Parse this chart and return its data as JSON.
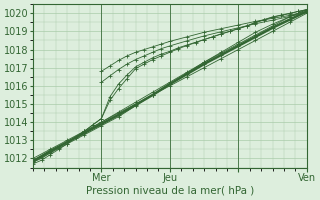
{
  "title": "",
  "xlabel": "Pression niveau de la mer( hPa )",
  "ylabel": "",
  "bg_color": "#cce0cc",
  "plot_bg_color": "#ddeedd",
  "grid_color": "#aaccaa",
  "line_color_hex": "#336633",
  "xlim": [
    0,
    96
  ],
  "ylim": [
    1011.5,
    1020.5
  ],
  "yticks": [
    1012,
    1013,
    1014,
    1015,
    1016,
    1017,
    1018,
    1019,
    1020
  ],
  "xtick_positions": [
    24,
    48,
    72,
    96
  ],
  "xtick_labels": [
    "Mer",
    "Jeu",
    "",
    "Ven"
  ],
  "day_lines": [
    24,
    48,
    72,
    96
  ],
  "series": [
    {
      "x": [
        0,
        6,
        12,
        18,
        24,
        30,
        36,
        42,
        48,
        54,
        60,
        66,
        72,
        78,
        84,
        90,
        96
      ],
      "y": [
        1011.8,
        1012.3,
        1012.8,
        1013.3,
        1013.8,
        1014.3,
        1014.9,
        1015.5,
        1016.1,
        1016.7,
        1017.3,
        1017.8,
        1018.3,
        1018.8,
        1019.3,
        1019.8,
        1020.2
      ]
    },
    {
      "x": [
        0,
        6,
        12,
        18,
        24,
        30,
        36,
        42,
        48,
        54,
        60,
        66,
        72,
        78,
        84,
        90,
        96
      ],
      "y": [
        1011.9,
        1012.35,
        1012.9,
        1013.45,
        1014.0,
        1014.55,
        1015.1,
        1015.65,
        1016.2,
        1016.75,
        1017.3,
        1017.85,
        1018.4,
        1018.95,
        1019.4,
        1019.8,
        1020.2
      ]
    },
    {
      "x": [
        0,
        6,
        12,
        18,
        24,
        30,
        36,
        42,
        48,
        54,
        60,
        66,
        72,
        78,
        84,
        90,
        96
      ],
      "y": [
        1012.0,
        1012.5,
        1013.0,
        1013.5,
        1014.0,
        1014.5,
        1015.0,
        1015.5,
        1016.0,
        1016.5,
        1017.0,
        1017.5,
        1018.0,
        1018.5,
        1019.0,
        1019.5,
        1020.0
      ]
    },
    {
      "x": [
        0,
        3,
        6,
        9,
        12,
        15,
        18,
        21,
        24,
        27,
        30,
        33,
        36,
        39,
        42,
        45,
        48,
        51,
        54,
        57,
        60,
        63,
        66,
        69,
        72,
        75,
        78,
        81,
        84,
        87,
        90,
        93,
        96
      ],
      "y": [
        1011.7,
        1011.9,
        1012.2,
        1012.5,
        1012.8,
        1013.15,
        1013.5,
        1013.85,
        1014.2,
        1015.4,
        1016.1,
        1016.6,
        1017.05,
        1017.3,
        1017.55,
        1017.75,
        1017.9,
        1018.1,
        1018.25,
        1018.4,
        1018.55,
        1018.7,
        1018.85,
        1019.0,
        1019.15,
        1019.3,
        1019.5,
        1019.65,
        1019.8,
        1019.9,
        1020.0,
        1020.1,
        1020.2
      ]
    },
    {
      "x": [
        0,
        3,
        6,
        9,
        12,
        15,
        18,
        21,
        24,
        27,
        30,
        33,
        36,
        39,
        42,
        45,
        48,
        51,
        54,
        57,
        60,
        63,
        66,
        69,
        72,
        75,
        78,
        81,
        84,
        87,
        90,
        93,
        96
      ],
      "y": [
        1011.8,
        1012.0,
        1012.3,
        1012.6,
        1012.9,
        1013.2,
        1013.5,
        1013.85,
        1014.2,
        1015.2,
        1015.85,
        1016.4,
        1016.95,
        1017.2,
        1017.45,
        1017.65,
        1017.85,
        1018.05,
        1018.22,
        1018.38,
        1018.55,
        1018.7,
        1018.87,
        1019.0,
        1019.15,
        1019.3,
        1019.48,
        1019.63,
        1019.78,
        1019.88,
        1019.98,
        1020.1,
        1020.2
      ]
    },
    {
      "x": [
        24,
        27,
        30,
        33,
        36,
        39,
        42,
        45,
        48,
        54,
        60,
        66,
        72,
        78,
        84,
        90,
        96
      ],
      "y": [
        1016.8,
        1017.1,
        1017.4,
        1017.65,
        1017.85,
        1018.0,
        1018.15,
        1018.3,
        1018.45,
        1018.7,
        1018.95,
        1019.15,
        1019.35,
        1019.55,
        1019.72,
        1019.88,
        1020.1
      ]
    },
    {
      "x": [
        24,
        27,
        30,
        33,
        36,
        39,
        42,
        45,
        48,
        54,
        60,
        66,
        72,
        78,
        84,
        90,
        96
      ],
      "y": [
        1016.2,
        1016.55,
        1016.9,
        1017.2,
        1017.45,
        1017.65,
        1017.85,
        1018.05,
        1018.2,
        1018.48,
        1018.75,
        1018.98,
        1019.2,
        1019.42,
        1019.62,
        1019.82,
        1020.05
      ]
    }
  ],
  "thick_line": {
    "x": [
      0,
      6,
      12,
      18,
      24,
      30,
      36,
      42,
      48,
      54,
      60,
      66,
      72,
      78,
      84,
      90,
      96
    ],
    "y": [
      1011.85,
      1012.4,
      1012.9,
      1013.4,
      1013.9,
      1014.4,
      1014.95,
      1015.5,
      1016.1,
      1016.65,
      1017.2,
      1017.7,
      1018.2,
      1018.7,
      1019.2,
      1019.65,
      1020.1
    ]
  }
}
